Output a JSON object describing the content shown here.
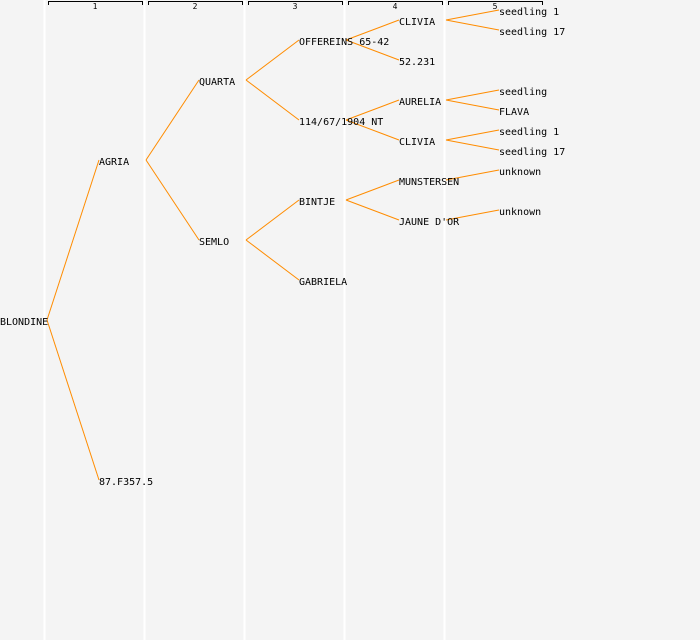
{
  "generation_headers": [
    "1",
    "2",
    "3",
    "4",
    "5"
  ],
  "colors": {
    "background": "#f4f4f4",
    "link": "#ff8c00",
    "column_divider": "#ffffff",
    "text": "#000000"
  },
  "pedigree": {
    "name": "BLONDINE",
    "parents": [
      {
        "name": "AGRIA",
        "parents": [
          {
            "name": "QUARTA",
            "parents": [
              {
                "name": "OFFEREINS 65-42",
                "parents": [
                  {
                    "name": "CLIVIA",
                    "parents": [
                      {
                        "name": "seedling 1"
                      },
                      {
                        "name": "seedling 17"
                      }
                    ]
                  },
                  {
                    "name": "52.231"
                  }
                ]
              },
              {
                "name": "114/67/1904 NT",
                "parents": [
                  {
                    "name": "AURELIA",
                    "parents": [
                      {
                        "name": "seedling"
                      },
                      {
                        "name": "FLAVA"
                      }
                    ]
                  },
                  {
                    "name": "CLIVIA",
                    "parents": [
                      {
                        "name": "seedling 1"
                      },
                      {
                        "name": "seedling 17"
                      }
                    ]
                  }
                ]
              }
            ]
          },
          {
            "name": "SEMLO",
            "parents": [
              {
                "name": "BINTJE",
                "parents": [
                  {
                    "name": "MUNSTERSEN",
                    "parents": [
                      {
                        "name": "unknown"
                      }
                    ]
                  },
                  {
                    "name": "JAUNE D'OR",
                    "parents": [
                      {
                        "name": "unknown"
                      }
                    ]
                  }
                ]
              },
              {
                "name": "GABRIELA"
              }
            ]
          }
        ]
      },
      {
        "name": "87.F357.5"
      }
    ]
  }
}
